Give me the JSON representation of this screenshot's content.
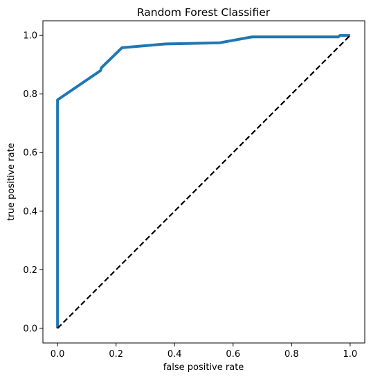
{
  "chart_data": {
    "type": "line",
    "title": "Random Forest Classifier",
    "xlabel": "false positive rate",
    "ylabel": "true positive rate",
    "xlim": [
      -0.05,
      1.05
    ],
    "ylim": [
      -0.05,
      1.05
    ],
    "xticks": [
      0.0,
      0.2,
      0.4,
      0.6,
      0.8,
      1.0
    ],
    "yticks": [
      0.0,
      0.2,
      0.4,
      0.6,
      0.8,
      1.0
    ],
    "xtick_labels": [
      "0.0",
      "0.2",
      "0.4",
      "0.6",
      "0.8",
      "1.0"
    ],
    "ytick_labels": [
      "0.0",
      "0.2",
      "0.4",
      "0.6",
      "0.8",
      "1.0"
    ],
    "grid": false,
    "legend": "none",
    "series": [
      {
        "color": "#1f77b4",
        "style": "solid",
        "points": [
          [
            0.0,
            0.0
          ],
          [
            0.0,
            0.78
          ],
          [
            0.147,
            0.88
          ],
          [
            0.15,
            0.89
          ],
          [
            0.22,
            0.958
          ],
          [
            0.37,
            0.971
          ],
          [
            0.555,
            0.975
          ],
          [
            0.665,
            0.995
          ],
          [
            0.96,
            0.995
          ],
          [
            0.965,
            1.0
          ],
          [
            1.0,
            1.0
          ]
        ]
      },
      {
        "color": "#000000",
        "style": "dashed",
        "points": [
          [
            0.0,
            0.0
          ],
          [
            1.0,
            1.0
          ]
        ]
      }
    ]
  }
}
